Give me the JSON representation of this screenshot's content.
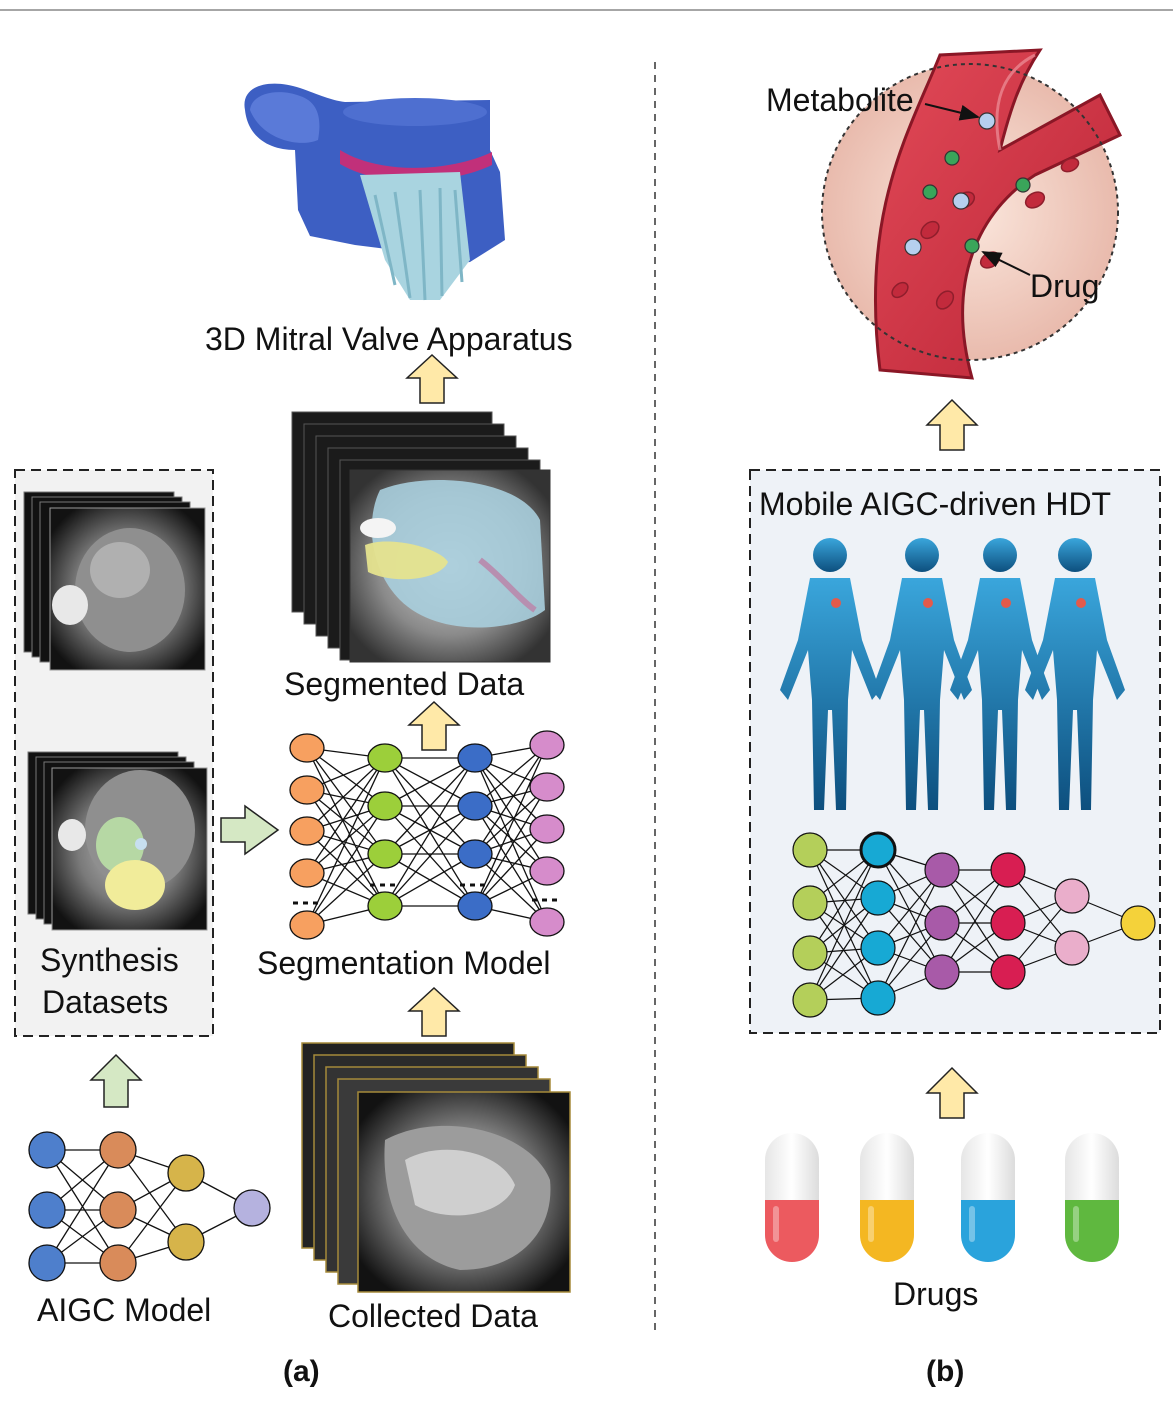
{
  "panel_a": {
    "caption": "(a)",
    "output_label": "3D Mitral Valve Apparatus",
    "segmented_label": "Segmented Data",
    "model_label": "Segmentation Model",
    "synthesis_label_1": "Synthesis",
    "synthesis_label_2": "Datasets",
    "aigc_label": "AIGC Model",
    "collected_label": "Collected Data"
  },
  "panel_b": {
    "caption": "(b)",
    "metabolite_label": "Metabolite",
    "drug_label": "Drug",
    "hdt_label": "Mobile AIGC-driven HDT",
    "drugs_label": "Drugs"
  },
  "colors": {
    "arrow_yellow": "#ffe9a8",
    "arrow_green": "#d5e8c4",
    "vessel_red": "#d83b4a",
    "body_blue": "#1e7fb8"
  },
  "pills": [
    {
      "name": "red-pill",
      "color": "#ec5a5f"
    },
    {
      "name": "yellow-pill",
      "color": "#f4b722"
    },
    {
      "name": "blue-pill",
      "color": "#2aa3dc"
    },
    {
      "name": "green-pill",
      "color": "#5fb83f"
    }
  ]
}
